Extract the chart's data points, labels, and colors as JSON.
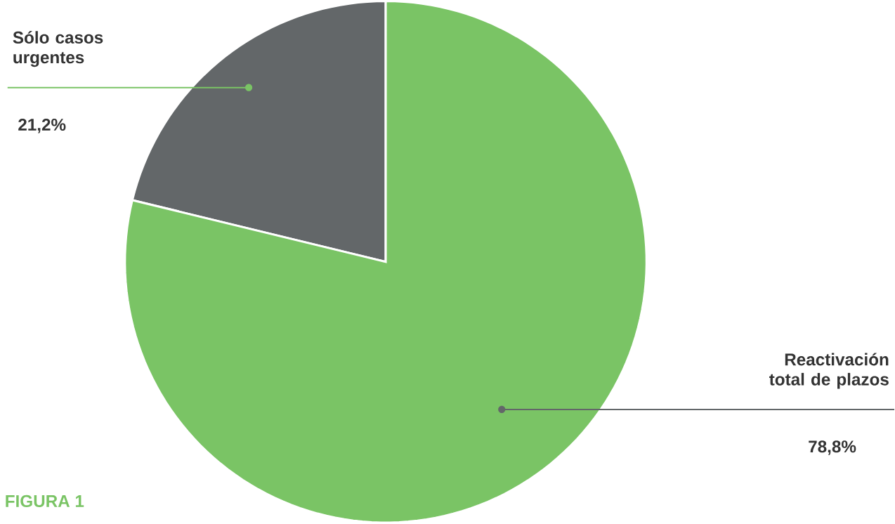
{
  "chart_data": {
    "type": "pie",
    "categories": [
      "Sólo casos urgentes",
      "Reactivación total de plazos"
    ],
    "values": [
      21.2,
      78.8
    ],
    "colors": [
      "#636769",
      "#7ac465"
    ],
    "value_labels": [
      "21,2%",
      "78,8%"
    ],
    "annotations": [
      "FIGURA 1"
    ]
  }
}
